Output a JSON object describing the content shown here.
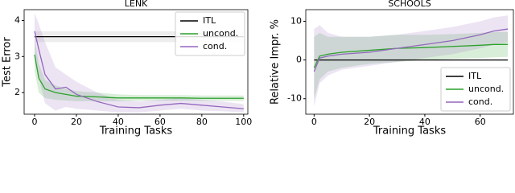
{
  "chart_data": [
    {
      "type": "line",
      "title": "LENK",
      "x_label": "Training Tasks",
      "y_label": "Test Error",
      "x": [
        0,
        2,
        5,
        10,
        15,
        20,
        30,
        40,
        50,
        60,
        70,
        80,
        90,
        100
      ],
      "xlim": [
        -5,
        102
      ],
      "ylim": [
        1.4,
        4.3
      ],
      "xticks": [
        0,
        20,
        40,
        60,
        80,
        100
      ],
      "yticks": [
        2,
        3,
        4
      ],
      "legend": "upper right",
      "series": [
        {
          "name": "ITL",
          "color": "#000000",
          "band_color": "#999999",
          "values": [
            3.55,
            3.55,
            3.55,
            3.55,
            3.55,
            3.55,
            3.55,
            3.55,
            3.55,
            3.55,
            3.55,
            3.55,
            3.55,
            3.55
          ],
          "lower": [
            3.4,
            3.4,
            3.4,
            3.4,
            3.4,
            3.4,
            3.4,
            3.4,
            3.4,
            3.4,
            3.4,
            3.4,
            3.4,
            3.4
          ],
          "upper": [
            3.7,
            3.7,
            3.7,
            3.7,
            3.7,
            3.7,
            3.7,
            3.7,
            3.7,
            3.7,
            3.7,
            3.7,
            3.7,
            3.7
          ]
        },
        {
          "name": "uncond.",
          "color": "#2ca02c",
          "band_color": "#2ca02c",
          "values": [
            3.05,
            2.4,
            2.1,
            2.0,
            1.95,
            1.9,
            1.88,
            1.85,
            1.85,
            1.85,
            1.85,
            1.84,
            1.84,
            1.84
          ],
          "lower": [
            2.6,
            2.0,
            1.85,
            1.8,
            1.78,
            1.76,
            1.76,
            1.76,
            1.77,
            1.77,
            1.77,
            1.77,
            1.77,
            1.77
          ],
          "upper": [
            3.5,
            2.8,
            2.35,
            2.2,
            2.1,
            2.04,
            2.0,
            1.95,
            1.93,
            1.93,
            1.93,
            1.92,
            1.92,
            1.92
          ]
        },
        {
          "name": "cond.",
          "color": "#9467bd",
          "band_color": "#9467bd",
          "values": [
            3.7,
            3.2,
            2.5,
            2.1,
            2.15,
            1.95,
            1.75,
            1.6,
            1.58,
            1.65,
            1.7,
            1.65,
            1.6,
            1.55
          ],
          "lower": [
            3.0,
            2.4,
            1.7,
            1.5,
            1.6,
            1.55,
            1.5,
            1.45,
            1.45,
            1.5,
            1.55,
            1.5,
            1.48,
            1.45
          ],
          "upper": [
            4.2,
            3.9,
            3.4,
            2.7,
            2.5,
            2.3,
            2.0,
            1.8,
            1.75,
            1.8,
            1.85,
            1.8,
            1.75,
            1.68
          ]
        }
      ]
    },
    {
      "type": "line",
      "title": "SCHOOLS",
      "x_label": "Training Tasks",
      "y_label": "Relative Impr. %",
      "x": [
        0,
        2,
        5,
        10,
        20,
        30,
        40,
        50,
        60,
        65,
        70
      ],
      "xlim": [
        -3,
        72
      ],
      "ylim": [
        -14,
        13
      ],
      "xticks": [
        0,
        20,
        40,
        60
      ],
      "yticks": [
        -10,
        0,
        10
      ],
      "legend": "lower right",
      "series": [
        {
          "name": "ITL",
          "color": "#000000",
          "band_color": "#999999",
          "values": [
            0,
            0,
            0,
            0,
            0,
            0,
            0,
            0,
            0,
            0,
            0
          ],
          "lower": [
            0,
            0,
            0,
            0,
            0,
            0,
            0,
            0,
            0,
            0,
            0
          ],
          "upper": [
            0,
            0,
            0,
            0,
            0,
            0,
            0,
            0,
            0,
            0,
            0
          ]
        },
        {
          "name": "uncond.",
          "color": "#2ca02c",
          "band_color": "#2ca02c",
          "values": [
            -2,
            1,
            1.5,
            2,
            2.5,
            3,
            3.2,
            3.5,
            3.8,
            4,
            4
          ],
          "lower": [
            -10,
            -5,
            -3,
            -2,
            -1,
            -0.5,
            0,
            0.3,
            0.5,
            0.7,
            0.8
          ],
          "upper": [
            6,
            7,
            6,
            6,
            6,
            6.5,
            6.5,
            6.7,
            7,
            7.2,
            7.2
          ]
        },
        {
          "name": "cond.",
          "color": "#9467bd",
          "band_color": "#9467bd",
          "values": [
            -3,
            0.5,
            1,
            1.5,
            2,
            3,
            4,
            5,
            6.5,
            7.5,
            8
          ],
          "lower": [
            -12,
            -6,
            -4,
            -2.5,
            -1.5,
            -0.5,
            0.5,
            1.5,
            3,
            4,
            4.5
          ],
          "upper": [
            8,
            9,
            7,
            6,
            6,
            6.5,
            7.5,
            8.5,
            10,
            11,
            11.5
          ]
        }
      ]
    }
  ]
}
